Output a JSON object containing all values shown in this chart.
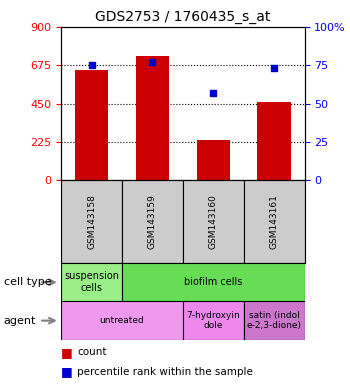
{
  "title": "GDS2753 / 1760435_s_at",
  "samples": [
    "GSM143158",
    "GSM143159",
    "GSM143160",
    "GSM143161"
  ],
  "counts": [
    650,
    730,
    240,
    460
  ],
  "percentile_ranks": [
    75,
    77,
    57,
    73
  ],
  "left_ylim": [
    0,
    900
  ],
  "left_yticks": [
    0,
    225,
    450,
    675,
    900
  ],
  "right_ylim": [
    0,
    100
  ],
  "right_yticks": [
    0,
    25,
    50,
    75,
    100
  ],
  "bar_color": "#cc0000",
  "dot_color": "#0000cc",
  "cell_type_row": [
    {
      "label": "suspension\ncells",
      "color": "#99ee88",
      "span": 1
    },
    {
      "label": "biofilm cells",
      "color": "#66dd55",
      "span": 3
    }
  ],
  "agent_row": [
    {
      "label": "untreated",
      "color": "#ee99ee",
      "span": 2
    },
    {
      "label": "7-hydroxyin\ndole",
      "color": "#ee88ee",
      "span": 1
    },
    {
      "label": "satin (indol\ne-2,3-dione)",
      "color": "#cc77cc",
      "span": 1
    }
  ],
  "cell_type_label": "cell type",
  "agent_label": "agent",
  "legend_count": "count",
  "legend_pct": "percentile rank within the sample",
  "hgrid_values": [
    225,
    450,
    675
  ],
  "sample_box_color": "#cccccc"
}
